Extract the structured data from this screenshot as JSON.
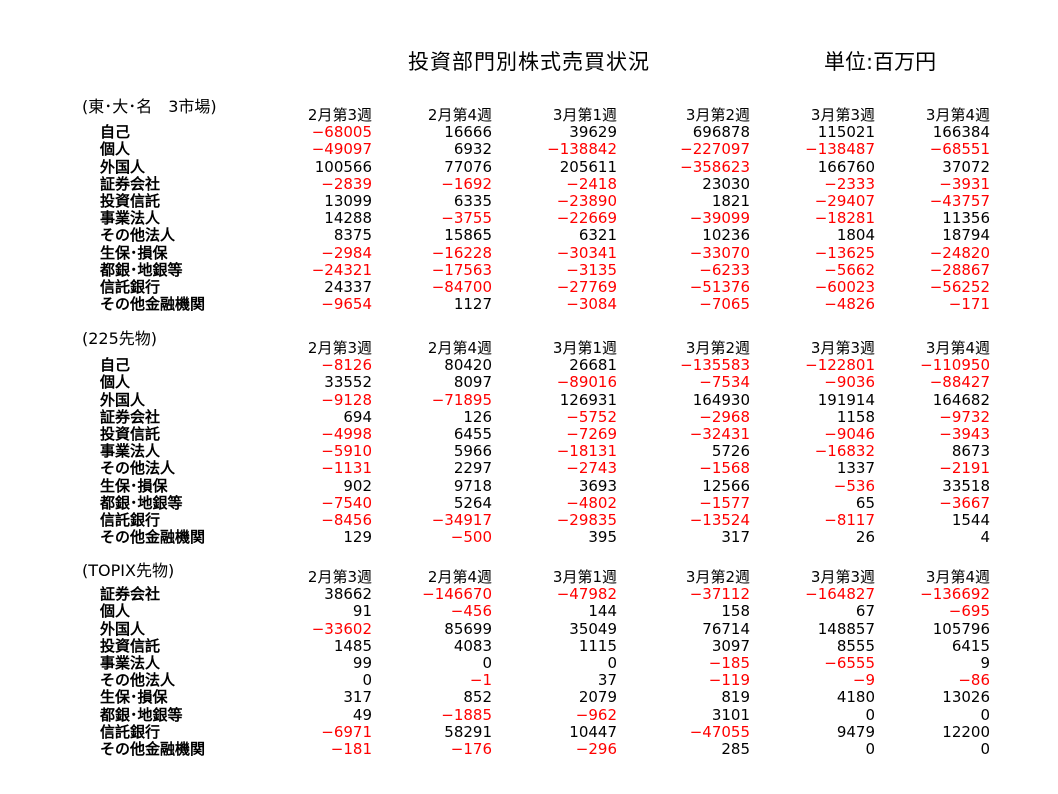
{
  "title": "投資部門別株式売買状況",
  "unit": "単位:百万円",
  "colors": {
    "negative": "#ff0000",
    "positive": "#000000"
  },
  "sections": [
    {
      "label": "(東･大･名　3市場)",
      "columns": [
        "2月第3週",
        "2月第4週",
        "3月第1週",
        "3月第2週",
        "3月第3週",
        "3月第4週"
      ],
      "rows": [
        {
          "label": "自己",
          "values": [
            -68005,
            16666,
            39629,
            696878,
            115021,
            166384
          ]
        },
        {
          "label": "個人",
          "values": [
            -49097,
            6932,
            -138842,
            -227097,
            -138487,
            -68551
          ]
        },
        {
          "label": "外国人",
          "values": [
            100566,
            77076,
            205611,
            -358623,
            166760,
            37072
          ]
        },
        {
          "label": "証券会社",
          "values": [
            -2839,
            -1692,
            -2418,
            23030,
            -2333,
            -3931
          ]
        },
        {
          "label": "投資信託",
          "values": [
            13099,
            6335,
            -23890,
            1821,
            -29407,
            -43757
          ]
        },
        {
          "label": "事業法人",
          "values": [
            14288,
            -3755,
            -22669,
            -39099,
            -18281,
            11356
          ]
        },
        {
          "label": "その他法人",
          "values": [
            8375,
            15865,
            6321,
            10236,
            1804,
            18794
          ]
        },
        {
          "label": "生保･損保",
          "values": [
            -2984,
            -16228,
            -30341,
            -33070,
            -13625,
            -24820
          ]
        },
        {
          "label": "都銀･地銀等",
          "values": [
            -24321,
            -17563,
            -3135,
            -6233,
            -5662,
            -28867
          ]
        },
        {
          "label": "信託銀行",
          "values": [
            24337,
            -84700,
            -27769,
            -51376,
            -60023,
            -56252
          ]
        },
        {
          "label": "その他金融機関",
          "values": [
            -9654,
            1127,
            -3084,
            -7065,
            -4826,
            -171
          ]
        }
      ]
    },
    {
      "label": "(225先物)",
      "columns": [
        "2月第3週",
        "2月第4週",
        "3月第1週",
        "3月第2週",
        "3月第3週",
        "3月第4週"
      ],
      "rows": [
        {
          "label": "自己",
          "values": [
            -8126,
            80420,
            26681,
            -135583,
            -122801,
            -110950
          ]
        },
        {
          "label": "個人",
          "values": [
            33552,
            8097,
            -89016,
            -7534,
            -9036,
            -88427
          ]
        },
        {
          "label": "外国人",
          "values": [
            -9128,
            -71895,
            126931,
            164930,
            191914,
            164682
          ]
        },
        {
          "label": "証券会社",
          "values": [
            694,
            126,
            -5752,
            -2968,
            1158,
            -9732
          ]
        },
        {
          "label": "投資信託",
          "values": [
            -4998,
            6455,
            -7269,
            -32431,
            -9046,
            -3943
          ]
        },
        {
          "label": "事業法人",
          "values": [
            -5910,
            5966,
            -18131,
            5726,
            -16832,
            8673
          ]
        },
        {
          "label": "その他法人",
          "values": [
            -1131,
            2297,
            -2743,
            -1568,
            1337,
            -2191
          ]
        },
        {
          "label": "生保･損保",
          "values": [
            902,
            9718,
            3693,
            12566,
            -536,
            33518
          ]
        },
        {
          "label": "都銀･地銀等",
          "values": [
            -7540,
            5264,
            -4802,
            -1577,
            65,
            -3667
          ]
        },
        {
          "label": "信託銀行",
          "values": [
            -8456,
            -34917,
            -29835,
            -13524,
            -8117,
            1544
          ]
        },
        {
          "label": "その他金融機関",
          "values": [
            129,
            -500,
            395,
            317,
            26,
            4
          ]
        }
      ]
    },
    {
      "label": "(TOPIX先物)",
      "columns": [
        "2月第3週",
        "2月第4週",
        "3月第1週",
        "3月第2週",
        "3月第3週",
        "3月第4週"
      ],
      "rows": [
        {
          "label": "証券会社",
          "values": [
            38662,
            -146670,
            -47982,
            -37112,
            -164827,
            -136692
          ]
        },
        {
          "label": "個人",
          "values": [
            91,
            -456,
            144,
            158,
            67,
            -695
          ]
        },
        {
          "label": "外国人",
          "values": [
            -33602,
            85699,
            35049,
            76714,
            148857,
            105796
          ]
        },
        {
          "label": "投資信託",
          "values": [
            1485,
            4083,
            1115,
            3097,
            8555,
            6415
          ]
        },
        {
          "label": "事業法人",
          "values": [
            99,
            0,
            0,
            -185,
            -6555,
            9
          ]
        },
        {
          "label": "その他法人",
          "values": [
            0,
            -1,
            37,
            -119,
            -9,
            -86
          ]
        },
        {
          "label": "生保･損保",
          "values": [
            317,
            852,
            2079,
            819,
            4180,
            13026
          ]
        },
        {
          "label": "都銀･地銀等",
          "values": [
            49,
            -1885,
            -962,
            3101,
            0,
            0
          ]
        },
        {
          "label": "信託銀行",
          "values": [
            -6971,
            58291,
            10447,
            -47055,
            9479,
            12200
          ]
        },
        {
          "label": "その他金融機関",
          "values": [
            -181,
            -176,
            -296,
            285,
            0,
            0
          ]
        }
      ]
    }
  ]
}
